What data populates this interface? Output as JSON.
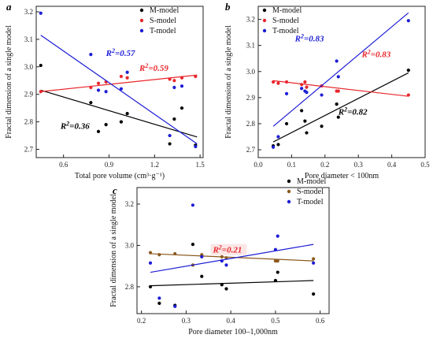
{
  "chart_data": [
    {
      "type": "scatter",
      "panel": "a",
      "xlabel": "Total pore volume (cm³·g⁻¹)",
      "ylabel": "Fractal dimension of a single model",
      "xlim": [
        0.42,
        1.52
      ],
      "ylim": [
        2.67,
        3.22
      ],
      "xticks": [
        "0.6",
        "0.9",
        "1.2",
        "1.5"
      ],
      "xtick_values": [
        0.6,
        0.9,
        1.2,
        1.5
      ],
      "yticks": [
        "2.7",
        "2.8",
        "2.9",
        "3.0",
        "3.1",
        "3.2"
      ],
      "ytick_values": [
        2.7,
        2.8,
        2.9,
        3.0,
        3.1,
        3.2
      ],
      "legend": "top-right",
      "series": [
        {
          "name": "M-model",
          "color": "#000000",
          "x": [
            0.45,
            0.78,
            0.83,
            0.88,
            0.98,
            1.02,
            1.3,
            1.33,
            1.38,
            1.47
          ],
          "y": [
            3.005,
            2.87,
            2.765,
            2.79,
            2.8,
            2.83,
            2.72,
            2.81,
            2.85,
            2.715
          ],
          "fit": [
            [
              0.45,
              2.915
            ],
            [
              1.48,
              2.745
            ]
          ]
        },
        {
          "name": "S-model",
          "color": "#e8262b",
          "x": [
            0.45,
            0.78,
            0.83,
            0.88,
            0.98,
            1.02,
            1.3,
            1.33,
            1.38,
            1.47
          ],
          "y": [
            2.91,
            2.925,
            2.94,
            2.945,
            2.965,
            2.96,
            2.955,
            2.95,
            2.96,
            2.965
          ],
          "fit": [
            [
              0.45,
              2.91
            ],
            [
              1.48,
              2.97
            ]
          ]
        },
        {
          "name": "T-model",
          "color": "#1d1dd6",
          "x": [
            0.45,
            0.78,
            0.83,
            0.88,
            0.98,
            1.02,
            1.3,
            1.33,
            1.38,
            1.47
          ],
          "y": [
            3.195,
            3.045,
            2.915,
            2.91,
            2.92,
            2.98,
            2.75,
            2.925,
            2.93,
            2.71
          ],
          "fit": [
            [
              0.45,
              3.115
            ],
            [
              1.48,
              2.72
            ]
          ]
        }
      ],
      "annotations": [
        {
          "text": "R²=0.57",
          "color": "#1d1dd6",
          "x": 0.88,
          "y": 3.04
        },
        {
          "text": "R²=0.59",
          "color": "#e8262b",
          "x": 1.1,
          "y": 2.985
        },
        {
          "text": "R²=0.36",
          "color": "#000000",
          "x": 0.58,
          "y": 2.775
        }
      ]
    },
    {
      "type": "scatter",
      "panel": "b",
      "xlabel": "Pore diameter < 100nm",
      "ylabel": "Fractal dimension of a single model",
      "xlim": [
        0.0,
        0.5
      ],
      "ylim": [
        2.67,
        3.25
      ],
      "xticks": [
        "0.0",
        "0.1",
        "0.2",
        "0.3",
        "0.4",
        "0.5"
      ],
      "xtick_values": [
        0.0,
        0.1,
        0.2,
        0.3,
        0.4,
        0.5
      ],
      "yticks": [
        "2.7",
        "2.8",
        "2.9",
        "3.0",
        "3.1",
        "3.2"
      ],
      "ytick_values": [
        2.7,
        2.8,
        2.9,
        3.0,
        3.1,
        3.2
      ],
      "legend": "top-left",
      "series": [
        {
          "name": "M-model",
          "color": "#000000",
          "x": [
            0.045,
            0.06,
            0.085,
            0.13,
            0.14,
            0.145,
            0.19,
            0.235,
            0.24,
            0.45
          ],
          "y": [
            2.715,
            2.72,
            2.8,
            2.85,
            2.81,
            2.765,
            2.79,
            2.875,
            2.825,
            3.005
          ],
          "fit": [
            [
              0.045,
              2.73
            ],
            [
              0.45,
              2.995
            ]
          ]
        },
        {
          "name": "S-model",
          "color": "#e8262b",
          "x": [
            0.045,
            0.06,
            0.085,
            0.13,
            0.14,
            0.145,
            0.19,
            0.235,
            0.24,
            0.45
          ],
          "y": [
            2.96,
            2.955,
            2.96,
            2.95,
            2.96,
            2.94,
            2.945,
            2.925,
            2.925,
            2.91
          ],
          "fit": [
            [
              0.045,
              2.965
            ],
            [
              0.45,
              2.905
            ]
          ]
        },
        {
          "name": "T-model",
          "color": "#1d1dd6",
          "x": [
            0.045,
            0.06,
            0.085,
            0.13,
            0.14,
            0.145,
            0.19,
            0.235,
            0.24,
            0.45
          ],
          "y": [
            2.71,
            2.75,
            2.915,
            2.935,
            2.925,
            2.92,
            2.91,
            3.04,
            2.98,
            3.195
          ],
          "fit": [
            [
              0.045,
              2.79
            ],
            [
              0.45,
              3.225
            ]
          ]
        }
      ],
      "annotations": [
        {
          "text": "R²=0.83",
          "color": "#1d1dd6",
          "x": 0.11,
          "y": 3.115
        },
        {
          "text": "R²=0.83",
          "color": "#e8262b",
          "x": 0.31,
          "y": 3.055
        },
        {
          "text": "R²=0.82",
          "color": "#000000",
          "x": 0.24,
          "y": 2.835
        }
      ]
    },
    {
      "type": "scatter",
      "panel": "c",
      "xlabel": "Pore diameter 100–1,000nm",
      "ylabel": "Fractal dimension of a single model",
      "xlim": [
        0.19,
        0.62
      ],
      "ylim": [
        2.67,
        3.28
      ],
      "xticks": [
        "0.2",
        "0.3",
        "0.4",
        "0.5",
        "0.6"
      ],
      "xtick_values": [
        0.2,
        0.3,
        0.4,
        0.5,
        0.6
      ],
      "yticks": [
        "2.8",
        "3.0",
        "3.2"
      ],
      "ytick_values": [
        2.8,
        3.0,
        3.2
      ],
      "legend": "top-right",
      "series": [
        {
          "name": "M-model",
          "color": "#000000",
          "x": [
            0.22,
            0.24,
            0.275,
            0.315,
            0.335,
            0.38,
            0.39,
            0.5,
            0.505,
            0.585
          ],
          "y": [
            2.8,
            2.72,
            2.71,
            3.005,
            2.85,
            2.81,
            2.79,
            2.83,
            2.87,
            2.765
          ],
          "fit": [
            [
              0.22,
              2.805
            ],
            [
              0.585,
              2.83
            ]
          ]
        },
        {
          "name": "S-model",
          "color": "#8b5a1e",
          "x": [
            0.22,
            0.24,
            0.275,
            0.315,
            0.335,
            0.38,
            0.39,
            0.5,
            0.505,
            0.585
          ],
          "y": [
            2.965,
            2.955,
            2.96,
            2.905,
            2.955,
            2.945,
            2.94,
            2.925,
            2.925,
            2.935
          ],
          "fit": [
            [
              0.22,
              2.96
            ],
            [
              0.585,
              2.925
            ]
          ]
        },
        {
          "name": "T-model",
          "color": "#1d1dd6",
          "x": [
            0.22,
            0.24,
            0.275,
            0.315,
            0.335,
            0.38,
            0.39,
            0.5,
            0.505,
            0.585
          ],
          "y": [
            2.915,
            2.745,
            2.705,
            3.195,
            2.945,
            2.925,
            2.905,
            2.98,
            3.045,
            2.915
          ],
          "fit": [
            [
              0.22,
              2.87
            ],
            [
              0.585,
              3.005
            ]
          ]
        }
      ],
      "annotations": [
        {
          "text": "R²=0.21",
          "color": "#e8262b",
          "x": 0.36,
          "y": 2.965
        }
      ]
    }
  ]
}
